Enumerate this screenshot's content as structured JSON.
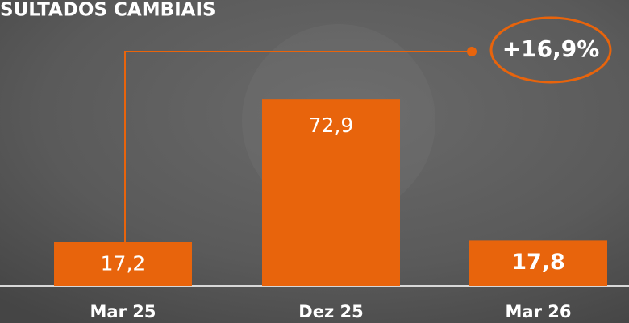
{
  "chart_data": {
    "type": "bar",
    "title": "SULTADOS CAMBIAIS",
    "categories": [
      "Mar 25",
      "Dez 25",
      "Mar 26"
    ],
    "values": [
      17.2,
      72.9,
      17.8
    ],
    "value_labels": [
      "17,2",
      "72,9",
      "17,8"
    ],
    "color": "#e8640c",
    "annotation": "+16,9%"
  }
}
